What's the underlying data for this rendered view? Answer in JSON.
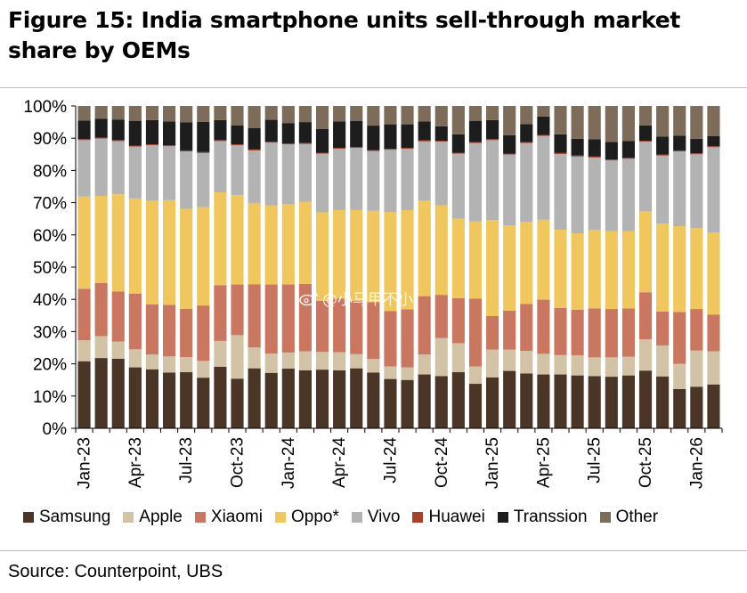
{
  "title": "Figure 15: India smartphone units sell-through market share by OEMs",
  "source": "Source: Counterpoint, UBS",
  "watermark": "@小马甲不小",
  "chart_data": {
    "type": "bar",
    "stacked": true,
    "ylim": [
      0,
      100
    ],
    "y_ticks": [
      "0%",
      "10%",
      "20%",
      "30%",
      "40%",
      "50%",
      "60%",
      "70%",
      "80%",
      "90%",
      "100%"
    ],
    "x_tick_labels": [
      "Jan-23",
      "Apr-23",
      "Jul-23",
      "Oct-23",
      "Jan-24",
      "Apr-24",
      "Jul-24",
      "Oct-24",
      "Jan-25",
      "Apr-25",
      "Jul-25",
      "Oct-25",
      "Jan-26"
    ],
    "x_tick_every": 3,
    "grid": false,
    "legend_position": "bottom",
    "categories": [
      "Jan-23",
      "Feb-23",
      "Mar-23",
      "Apr-23",
      "May-23",
      "Jun-23",
      "Jul-23",
      "Aug-23",
      "Sep-23",
      "Oct-23",
      "Nov-23",
      "Dec-23",
      "Jan-24",
      "Feb-24",
      "Mar-24",
      "Apr-24",
      "May-24",
      "Jun-24",
      "Jul-24",
      "Aug-24",
      "Sep-24",
      "Oct-24",
      "Nov-24",
      "Dec-24",
      "Jan-25",
      "Feb-25",
      "Mar-25",
      "Apr-25",
      "May-25",
      "Jun-25",
      "Jul-25",
      "Aug-25",
      "Sep-25",
      "Oct-25",
      "Nov-25",
      "Dec-25",
      "Jan-26",
      "Feb-26"
    ],
    "series": [
      {
        "name": "Samsung",
        "color": "#4a3526",
        "values": [
          20.8,
          21.8,
          21.6,
          18.9,
          18.3,
          17.3,
          17.4,
          15.7,
          19.1,
          15.4,
          18.6,
          17.2,
          18.5,
          18.0,
          18.2,
          18.0,
          18.6,
          17.3,
          15.3,
          15.0,
          16.7,
          16.2,
          17.4,
          13.8,
          15.8,
          17.8,
          17.0,
          16.7,
          16.7,
          16.4,
          16.2,
          16.0,
          16.4,
          17.9,
          16.1,
          12.2,
          12.9,
          13.6
        ]
      },
      {
        "name": "Apple",
        "color": "#d2c2a6",
        "values": [
          6.5,
          6.8,
          5.3,
          5.6,
          4.6,
          5.0,
          4.7,
          5.2,
          8.0,
          13.5,
          6.5,
          6.0,
          5.0,
          5.9,
          5.5,
          5.6,
          4.4,
          4.2,
          3.9,
          3.9,
          6.2,
          11.8,
          9.0,
          5.4,
          8.6,
          6.6,
          7.0,
          6.4,
          6.0,
          6.2,
          5.8,
          6.0,
          5.8,
          9.7,
          9.6,
          7.8,
          11.2,
          10.3
        ]
      },
      {
        "name": "Xiaomi",
        "color": "#c97761",
        "values": [
          16.0,
          16.5,
          15.5,
          17.3,
          15.5,
          16.0,
          15.0,
          17.2,
          17.3,
          15.7,
          19.6,
          21.4,
          21.1,
          20.9,
          15.8,
          16.6,
          16.5,
          17.6,
          17.2,
          18.0,
          18.1,
          13.4,
          14.0,
          21.0,
          10.4,
          12.1,
          14.6,
          16.8,
          14.6,
          14.2,
          15.2,
          15.0,
          15.0,
          14.6,
          10.5,
          16.1,
          12.9,
          11.4
        ]
      },
      {
        "name": "Oppo*",
        "color": "#f0c75e",
        "values": [
          28.6,
          27.0,
          30.2,
          29.5,
          32.2,
          32.5,
          31.0,
          30.5,
          28.8,
          27.7,
          25.1,
          24.6,
          24.9,
          25.5,
          27.5,
          27.5,
          28.2,
          28.4,
          30.7,
          30.8,
          29.6,
          27.8,
          24.6,
          24.0,
          29.8,
          26.4,
          25.4,
          24.8,
          24.3,
          23.7,
          24.3,
          24.1,
          23.9,
          25.1,
          27.3,
          26.6,
          25.1,
          25.4
        ]
      },
      {
        "name": "Vivo",
        "color": "#b3b3b3",
        "values": [
          17.5,
          17.8,
          16.5,
          16.1,
          17.2,
          16.7,
          17.8,
          16.8,
          15.9,
          15.5,
          16.4,
          19.4,
          18.6,
          17.9,
          18.2,
          19.0,
          19.3,
          18.5,
          19.3,
          19.0,
          18.4,
          19.7,
          20.2,
          24.3,
          24.8,
          22.0,
          24.5,
          26.0,
          23.5,
          23.8,
          22.5,
          22.0,
          22.5,
          21.6,
          21.1,
          23.2,
          22.9,
          26.5
        ]
      },
      {
        "name": "Huawei",
        "color": "#a8412b",
        "values": [
          0.3,
          0.3,
          0.3,
          0.3,
          0.3,
          0.3,
          0.3,
          0.3,
          0.3,
          0.3,
          0.3,
          0.3,
          0.3,
          0.3,
          0.3,
          0.3,
          0.3,
          0.3,
          0.3,
          0.3,
          0.3,
          0.3,
          0.3,
          0.3,
          0.3,
          0.3,
          0.3,
          0.3,
          0.3,
          0.3,
          0.3,
          0.3,
          0.3,
          0.3,
          0.3,
          0.3,
          0.3,
          0.3
        ]
      },
      {
        "name": "Transsion",
        "color": "#1d1d1d",
        "values": [
          5.8,
          5.8,
          6.4,
          7.7,
          7.5,
          7.4,
          8.7,
          9.4,
          6.2,
          5.9,
          6.6,
          6.8,
          6.3,
          6.5,
          7.4,
          8.2,
          8.0,
          7.6,
          7.6,
          7.3,
          5.9,
          4.5,
          5.7,
          6.6,
          5.9,
          5.7,
          5.6,
          5.7,
          5.8,
          5.2,
          5.4,
          5.4,
          5.2,
          4.8,
          5.6,
          4.6,
          4.5,
          3.2
        ]
      },
      {
        "name": "Other",
        "color": "#7d6c5a",
        "values": [
          4.5,
          4.0,
          4.2,
          4.6,
          4.4,
          4.8,
          5.1,
          4.9,
          4.4,
          6.0,
          6.9,
          4.3,
          5.3,
          5.0,
          7.1,
          4.8,
          4.7,
          6.1,
          5.7,
          5.7,
          4.8,
          6.3,
          8.8,
          4.6,
          4.4,
          9.1,
          5.6,
          3.3,
          8.8,
          10.2,
          10.3,
          11.5,
          10.9,
          6.0,
          9.5,
          9.2,
          10.2,
          9.3
        ]
      }
    ]
  }
}
